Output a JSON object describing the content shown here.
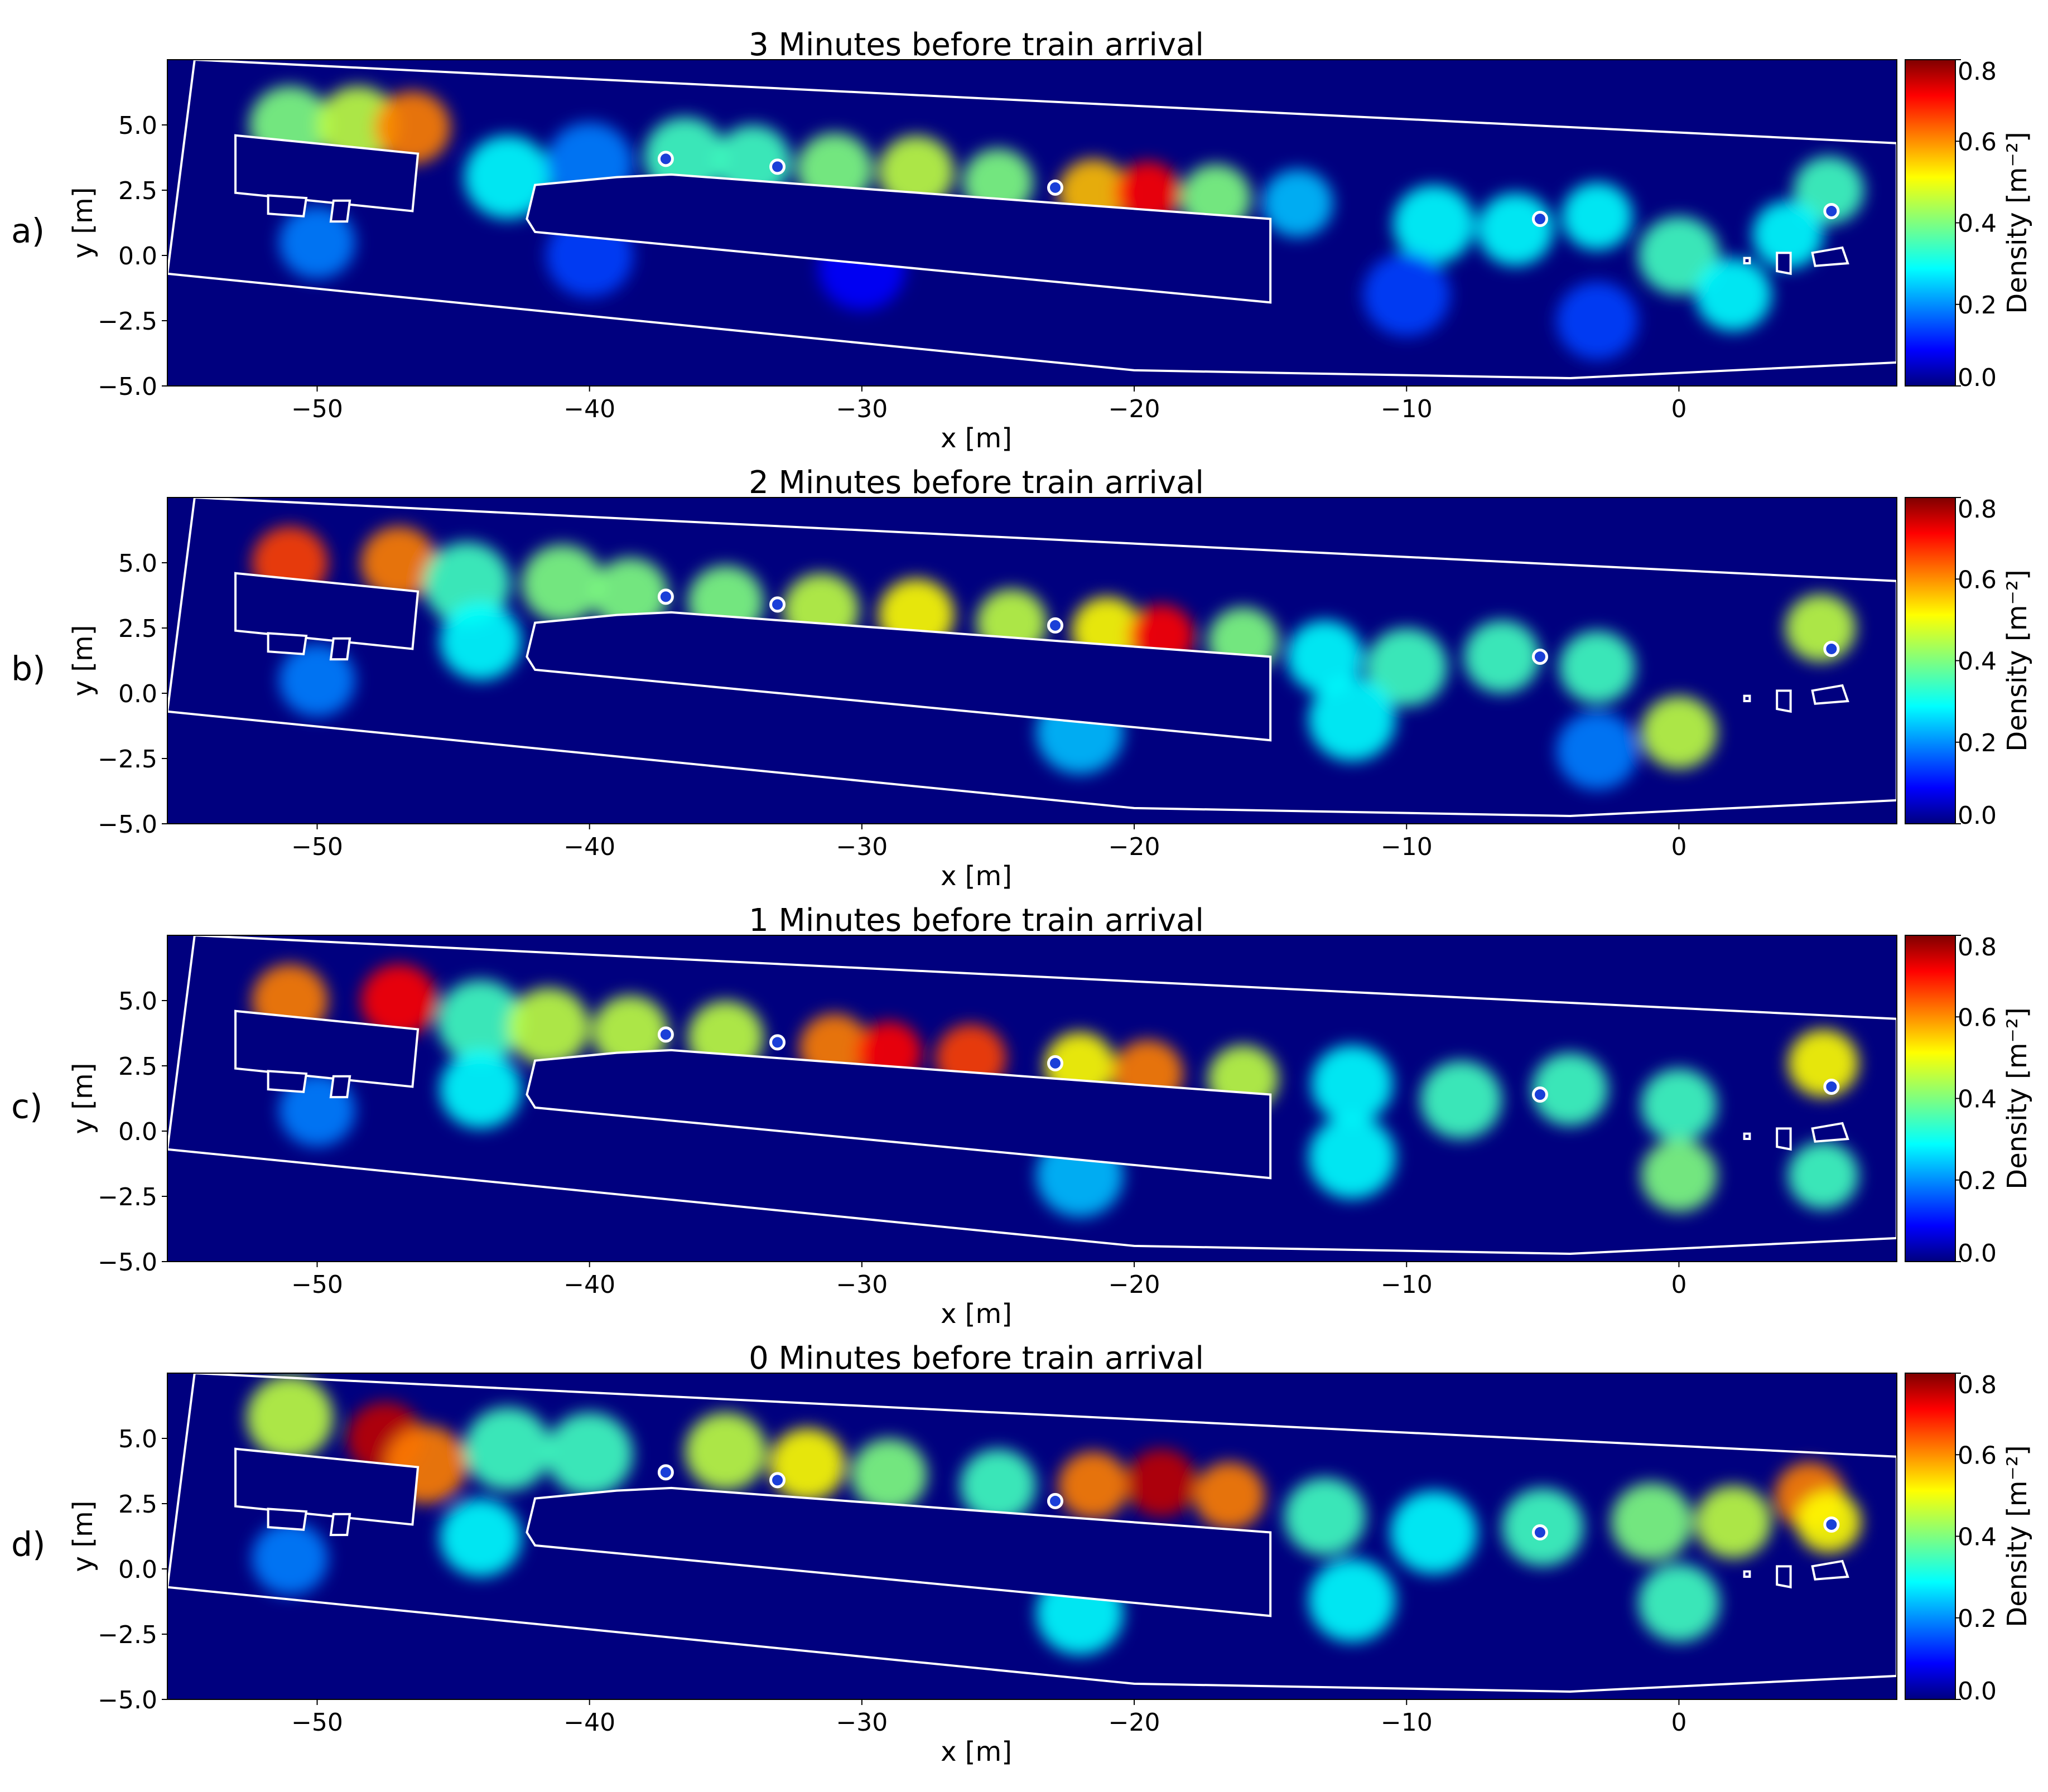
{
  "chart_data": {
    "type": "heatmap",
    "x_axis": {
      "label": "x [m]",
      "range": [
        -55.5,
        8.0
      ],
      "ticks": [
        -50,
        -40,
        -30,
        -20,
        -10,
        0
      ],
      "tick_labels": [
        "−50",
        "−40",
        "−30",
        "−20",
        "−10",
        "0"
      ]
    },
    "y_axis": {
      "label": "y [m]",
      "range": [
        -5.0,
        7.5
      ],
      "ticks": [
        5.0,
        2.5,
        0.0,
        -2.5,
        -5.0
      ],
      "tick_labels": [
        "5.0",
        "2.5",
        "0.0",
        "−2.5",
        "−5.0"
      ]
    },
    "colorbar": {
      "label": "Density [m⁻²]",
      "colormap": "jet",
      "range": [
        0.0,
        0.8
      ],
      "ticks": [
        "0.8",
        "0.6",
        "0.4",
        "0.2",
        "0.0"
      ]
    },
    "platform_outline": [
      [
        -54.5,
        7.5
      ],
      [
        8.0,
        4.3
      ],
      [
        8.0,
        -4.1
      ],
      [
        -4.0,
        -4.7
      ],
      [
        -20.0,
        -4.4
      ],
      [
        -55.5,
        -0.7
      ]
    ],
    "obstacles": [
      {
        "shape": "rect",
        "points": [
          [
            -53,
            4.6
          ],
          [
            -46.3,
            3.9
          ],
          [
            -46.5,
            1.7
          ],
          [
            -53,
            2.4
          ]
        ]
      },
      {
        "shape": "rect",
        "points": [
          [
            -51.8,
            2.3
          ],
          [
            -50.4,
            2.2
          ],
          [
            -50.5,
            1.5
          ],
          [
            -51.8,
            1.6
          ]
        ]
      },
      {
        "shape": "rect",
        "points": [
          [
            -49.4,
            2.1
          ],
          [
            -48.8,
            2.1
          ],
          [
            -48.9,
            1.3
          ],
          [
            -49.5,
            1.3
          ]
        ]
      },
      {
        "shape": "poly",
        "points": [
          [
            -42,
            2.7
          ],
          [
            -39,
            3.0
          ],
          [
            -37,
            3.1
          ],
          [
            -15,
            1.4
          ],
          [
            -15,
            -1.8
          ],
          [
            -42,
            0.9
          ],
          [
            -42.3,
            1.4
          ]
        ]
      },
      {
        "shape": "rect",
        "points": [
          [
            3.6,
            0.1
          ],
          [
            4.1,
            0.1
          ],
          [
            4.1,
            -0.7
          ],
          [
            3.6,
            -0.6
          ]
        ]
      },
      {
        "shape": "rect",
        "points": [
          [
            4.9,
            0.1
          ],
          [
            6.0,
            0.3
          ],
          [
            6.2,
            -0.3
          ],
          [
            5.0,
            -0.4
          ]
        ]
      },
      {
        "shape": "rect",
        "points": [
          [
            2.4,
            -0.1
          ],
          [
            2.6,
            -0.1
          ],
          [
            2.6,
            -0.3
          ],
          [
            2.4,
            -0.3
          ]
        ]
      }
    ],
    "sensors": [
      [
        -37.2,
        3.7
      ],
      [
        -33.1,
        3.4
      ],
      [
        -22.9,
        2.6
      ],
      [
        -5.1,
        1.4
      ],
      [
        5.6,
        1.7
      ]
    ],
    "panels": [
      {
        "letter": "a)",
        "title": "3 Minutes before train arrival",
        "blobs": [
          [
            -51,
            5,
            0.4,
            1.5
          ],
          [
            -48.5,
            5,
            0.45,
            1.5
          ],
          [
            -46.5,
            4.9,
            0.6,
            1.4
          ],
          [
            -43,
            3,
            0.3,
            1.6
          ],
          [
            -40,
            3.5,
            0.2,
            1.6
          ],
          [
            -36.5,
            3.8,
            0.35,
            1.5
          ],
          [
            -34,
            3.6,
            0.35,
            1.4
          ],
          [
            -31,
            3.3,
            0.4,
            1.4
          ],
          [
            -28,
            3.2,
            0.45,
            1.4
          ],
          [
            -25,
            2.8,
            0.4,
            1.3
          ],
          [
            -21.5,
            2.4,
            0.55,
            1.3
          ],
          [
            -19.5,
            2.4,
            0.7,
            1.2
          ],
          [
            -17,
            2.2,
            0.4,
            1.3
          ],
          [
            -14,
            2.0,
            0.25,
            1.3
          ],
          [
            -9,
            1.2,
            0.3,
            1.5
          ],
          [
            -6,
            1.0,
            0.3,
            1.4
          ],
          [
            -3,
            1.5,
            0.3,
            1.3
          ],
          [
            0,
            0,
            0.35,
            1.5
          ],
          [
            2,
            -1.5,
            0.3,
            1.4
          ],
          [
            5.5,
            2.5,
            0.35,
            1.3
          ],
          [
            4,
            0.8,
            0.3,
            1.3
          ],
          [
            -50,
            0.5,
            0.2,
            1.4
          ],
          [
            -40,
            0,
            0.15,
            1.6
          ],
          [
            -30,
            -0.5,
            0.1,
            1.6
          ],
          [
            -10,
            -1.5,
            0.15,
            1.6
          ],
          [
            -3,
            -2.5,
            0.15,
            1.5
          ]
        ]
      },
      {
        "letter": "b)",
        "title": "2 Minutes before train arrival",
        "blobs": [
          [
            -51,
            5,
            0.65,
            1.4
          ],
          [
            -47,
            5,
            0.6,
            1.4
          ],
          [
            -44.5,
            4.2,
            0.35,
            1.6
          ],
          [
            -41,
            4.2,
            0.4,
            1.5
          ],
          [
            -38.5,
            3.8,
            0.4,
            1.4
          ],
          [
            -35,
            3.5,
            0.4,
            1.4
          ],
          [
            -31.5,
            3.2,
            0.45,
            1.4
          ],
          [
            -28,
            3.0,
            0.5,
            1.4
          ],
          [
            -24.5,
            2.7,
            0.45,
            1.3
          ],
          [
            -21,
            2.4,
            0.5,
            1.3
          ],
          [
            -19,
            2.2,
            0.7,
            1.2
          ],
          [
            -16,
            2.0,
            0.4,
            1.3
          ],
          [
            -13,
            1.4,
            0.3,
            1.4
          ],
          [
            -10,
            1.0,
            0.35,
            1.5
          ],
          [
            -6.5,
            1.4,
            0.35,
            1.4
          ],
          [
            -3,
            1.0,
            0.35,
            1.4
          ],
          [
            0,
            -1.5,
            0.45,
            1.4
          ],
          [
            5.2,
            2.5,
            0.45,
            1.3
          ],
          [
            -22,
            -1.5,
            0.25,
            1.6
          ],
          [
            -12,
            -1.0,
            0.3,
            1.6
          ],
          [
            -50,
            0.5,
            0.2,
            1.4
          ],
          [
            -44,
            2.0,
            0.3,
            1.5
          ],
          [
            -3,
            -2.2,
            0.2,
            1.5
          ]
        ]
      },
      {
        "letter": "c)",
        "title": "1 Minutes before train arrival",
        "blobs": [
          [
            -51,
            5,
            0.6,
            1.4
          ],
          [
            -47,
            5,
            0.7,
            1.4
          ],
          [
            -44,
            4.2,
            0.35,
            1.6
          ],
          [
            -41.5,
            4.0,
            0.45,
            1.5
          ],
          [
            -38.5,
            3.8,
            0.45,
            1.4
          ],
          [
            -35,
            3.6,
            0.45,
            1.4
          ],
          [
            -31,
            3.2,
            0.6,
            1.3
          ],
          [
            -29,
            3.0,
            0.7,
            1.2
          ],
          [
            -26,
            2.8,
            0.65,
            1.3
          ],
          [
            -22,
            2.5,
            0.5,
            1.3
          ],
          [
            -19.5,
            2.2,
            0.6,
            1.3
          ],
          [
            -16,
            2.0,
            0.45,
            1.3
          ],
          [
            -12,
            1.8,
            0.3,
            1.5
          ],
          [
            -8,
            1.2,
            0.35,
            1.5
          ],
          [
            -4,
            1.6,
            0.35,
            1.4
          ],
          [
            0,
            1.0,
            0.35,
            1.4
          ],
          [
            5.3,
            2.6,
            0.5,
            1.3
          ],
          [
            0,
            -1.7,
            0.4,
            1.4
          ],
          [
            5.3,
            -1.7,
            0.35,
            1.3
          ],
          [
            -22,
            -1.7,
            0.25,
            1.6
          ],
          [
            -12,
            -1.0,
            0.3,
            1.6
          ],
          [
            -50,
            0.8,
            0.2,
            1.4
          ],
          [
            -44,
            1.6,
            0.3,
            1.5
          ]
        ]
      },
      {
        "letter": "d)",
        "title": "0 Minutes before train arrival",
        "blobs": [
          [
            -51,
            5.8,
            0.45,
            1.6
          ],
          [
            -47.5,
            5.0,
            0.75,
            1.4
          ],
          [
            -46,
            4.0,
            0.6,
            1.5
          ],
          [
            -43,
            4.6,
            0.35,
            1.6
          ],
          [
            -40,
            4.4,
            0.35,
            1.6
          ],
          [
            -35,
            4.5,
            0.45,
            1.5
          ],
          [
            -32,
            4.0,
            0.5,
            1.4
          ],
          [
            -29,
            3.6,
            0.4,
            1.4
          ],
          [
            -25,
            3.2,
            0.35,
            1.4
          ],
          [
            -21.5,
            3.2,
            0.6,
            1.3
          ],
          [
            -19,
            3.3,
            0.75,
            1.3
          ],
          [
            -16.5,
            2.8,
            0.6,
            1.3
          ],
          [
            -13,
            2.0,
            0.35,
            1.5
          ],
          [
            -9,
            1.4,
            0.3,
            1.6
          ],
          [
            -5,
            1.6,
            0.35,
            1.5
          ],
          [
            -1,
            1.8,
            0.4,
            1.5
          ],
          [
            2,
            1.8,
            0.45,
            1.4
          ],
          [
            4.8,
            2.8,
            0.6,
            1.3
          ],
          [
            5.5,
            1.8,
            0.5,
            1.2
          ],
          [
            0,
            -1.3,
            0.35,
            1.5
          ],
          [
            -22,
            -1.7,
            0.3,
            1.6
          ],
          [
            -12,
            -1.2,
            0.3,
            1.6
          ],
          [
            -51,
            0.4,
            0.2,
            1.4
          ],
          [
            -44,
            1.2,
            0.3,
            1.5
          ]
        ]
      }
    ]
  }
}
